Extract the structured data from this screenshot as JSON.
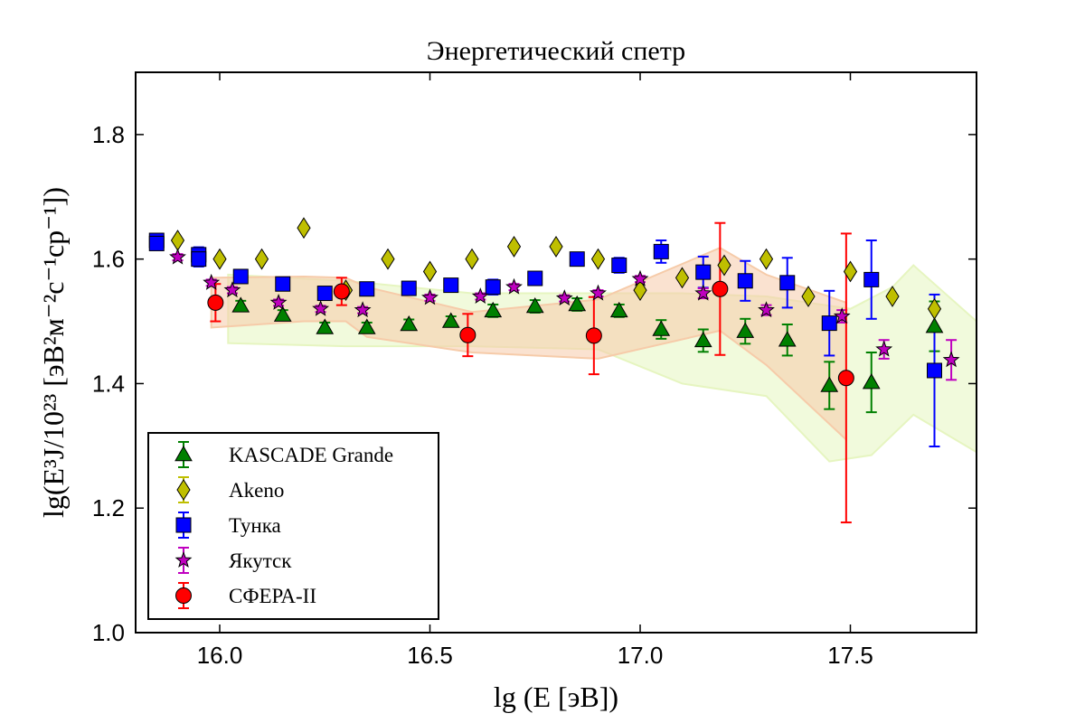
{
  "chart_data": {
    "type": "scatter",
    "title": "Энергетический спетр",
    "xlabel": "lg (E [эВ])",
    "ylabel": "lg(E³J/10²³ [эВ²м⁻²с⁻¹ср⁻¹])",
    "xlim": [
      15.8,
      17.8
    ],
    "ylim": [
      1.0,
      1.9
    ],
    "xticks": [
      "16.0",
      "16.5",
      "17.0",
      "17.5"
    ],
    "yticks": [
      "1.0",
      "1.2",
      "1.4",
      "1.6",
      "1.8"
    ],
    "grid": false,
    "legend_position": "lower-left",
    "series": [
      {
        "name": "KASCADE Grande",
        "marker": "triangle",
        "color": "#008000",
        "errcolor": "#008000",
        "points": [
          {
            "x": 16.05,
            "y": 1.525,
            "err": 0.008
          },
          {
            "x": 16.15,
            "y": 1.51,
            "err": 0.008
          },
          {
            "x": 16.25,
            "y": 1.49,
            "err": 0.008
          },
          {
            "x": 16.35,
            "y": 1.49,
            "err": 0.008
          },
          {
            "x": 16.45,
            "y": 1.495,
            "err": 0.008
          },
          {
            "x": 16.55,
            "y": 1.5,
            "err": 0.008
          },
          {
            "x": 16.65,
            "y": 1.517,
            "err": 0.01
          },
          {
            "x": 16.75,
            "y": 1.524,
            "err": 0.01
          },
          {
            "x": 16.85,
            "y": 1.527,
            "err": 0.01
          },
          {
            "x": 16.95,
            "y": 1.517,
            "err": 0.01
          },
          {
            "x": 17.05,
            "y": 1.487,
            "err": 0.015
          },
          {
            "x": 17.15,
            "y": 1.469,
            "err": 0.018
          },
          {
            "x": 17.25,
            "y": 1.484,
            "err": 0.02
          },
          {
            "x": 17.35,
            "y": 1.47,
            "err": 0.025
          },
          {
            "x": 17.45,
            "y": 1.397,
            "err": 0.038
          },
          {
            "x": 17.55,
            "y": 1.402,
            "err": 0.048
          },
          {
            "x": 17.7,
            "y": 1.492,
            "err": 0.04
          }
        ]
      },
      {
        "name": "Akeno",
        "marker": "diamond",
        "color": "#bfbf00",
        "errcolor": "#bfbf00",
        "points": [
          {
            "x": 15.9,
            "y": 1.63,
            "err": 0
          },
          {
            "x": 16.0,
            "y": 1.6,
            "err": 0
          },
          {
            "x": 16.1,
            "y": 1.6,
            "err": 0
          },
          {
            "x": 16.2,
            "y": 1.65,
            "err": 0
          },
          {
            "x": 16.3,
            "y": 1.55,
            "err": 0
          },
          {
            "x": 16.4,
            "y": 1.6,
            "err": 0
          },
          {
            "x": 16.5,
            "y": 1.58,
            "err": 0
          },
          {
            "x": 16.6,
            "y": 1.6,
            "err": 0
          },
          {
            "x": 16.7,
            "y": 1.62,
            "err": 0
          },
          {
            "x": 16.8,
            "y": 1.62,
            "err": 0
          },
          {
            "x": 16.9,
            "y": 1.6,
            "err": 0
          },
          {
            "x": 17.0,
            "y": 1.55,
            "err": 0
          },
          {
            "x": 17.1,
            "y": 1.57,
            "err": 0
          },
          {
            "x": 17.2,
            "y": 1.59,
            "err": 0
          },
          {
            "x": 17.3,
            "y": 1.6,
            "err": 0
          },
          {
            "x": 17.4,
            "y": 1.54,
            "err": 0
          },
          {
            "x": 17.5,
            "y": 1.58,
            "err": 0
          },
          {
            "x": 17.6,
            "y": 1.54,
            "err": 0
          },
          {
            "x": 17.7,
            "y": 1.52,
            "err": 0
          }
        ]
      },
      {
        "name": "Тунка",
        "marker": "square",
        "color": "#0000ff",
        "errcolor": "#0000ff",
        "points": [
          {
            "x": 15.85,
            "y": 1.63,
            "err": 0.008
          },
          {
            "x": 15.85,
            "y": 1.625,
            "err": 0.008
          },
          {
            "x": 15.95,
            "y": 1.607,
            "err": 0.012
          },
          {
            "x": 15.95,
            "y": 1.6,
            "err": 0.012
          },
          {
            "x": 16.05,
            "y": 1.572,
            "err": 0.008
          },
          {
            "x": 16.15,
            "y": 1.56,
            "err": 0.008
          },
          {
            "x": 16.25,
            "y": 1.545,
            "err": 0.008
          },
          {
            "x": 16.35,
            "y": 1.552,
            "err": 0.008
          },
          {
            "x": 16.45,
            "y": 1.553,
            "err": 0.008
          },
          {
            "x": 16.55,
            "y": 1.558,
            "err": 0.008
          },
          {
            "x": 16.65,
            "y": 1.555,
            "err": 0.012
          },
          {
            "x": 16.75,
            "y": 1.569,
            "err": 0.008
          },
          {
            "x": 16.85,
            "y": 1.6,
            "err": 0.008
          },
          {
            "x": 16.95,
            "y": 1.59,
            "err": 0.012
          },
          {
            "x": 17.05,
            "y": 1.612,
            "err": 0.018
          },
          {
            "x": 17.15,
            "y": 1.579,
            "err": 0.025
          },
          {
            "x": 17.25,
            "y": 1.565,
            "err": 0.032
          },
          {
            "x": 17.35,
            "y": 1.562,
            "err": 0.04
          },
          {
            "x": 17.45,
            "y": 1.497,
            "err": 0.052
          },
          {
            "x": 17.55,
            "y": 1.567,
            "err": 0.063
          },
          {
            "x": 17.7,
            "y": 1.421,
            "err": 0.122
          }
        ]
      },
      {
        "name": "Якутск",
        "marker": "star",
        "color": "#bf00bf",
        "errcolor": "#bf00bf",
        "points": [
          {
            "x": 15.9,
            "y": 1.603,
            "err": 0.005
          },
          {
            "x": 15.98,
            "y": 1.562,
            "err": 0.005
          },
          {
            "x": 16.03,
            "y": 1.55,
            "err": 0.005
          },
          {
            "x": 16.14,
            "y": 1.53,
            "err": 0.005
          },
          {
            "x": 16.24,
            "y": 1.52,
            "err": 0.005
          },
          {
            "x": 16.34,
            "y": 1.518,
            "err": 0.005
          },
          {
            "x": 16.5,
            "y": 1.538,
            "err": 0.005
          },
          {
            "x": 16.62,
            "y": 1.54,
            "err": 0.005
          },
          {
            "x": 16.7,
            "y": 1.555,
            "err": 0.005
          },
          {
            "x": 16.82,
            "y": 1.537,
            "err": 0.005
          },
          {
            "x": 16.9,
            "y": 1.545,
            "err": 0.005
          },
          {
            "x": 17.0,
            "y": 1.568,
            "err": 0.005
          },
          {
            "x": 17.15,
            "y": 1.545,
            "err": 0.008
          },
          {
            "x": 17.3,
            "y": 1.518,
            "err": 0.008
          },
          {
            "x": 17.48,
            "y": 1.508,
            "err": 0.01
          },
          {
            "x": 17.58,
            "y": 1.455,
            "err": 0.015
          },
          {
            "x": 17.74,
            "y": 1.438,
            "err": 0.032
          }
        ]
      },
      {
        "name": "СФЕРА-II",
        "marker": "circle",
        "color": "#ff0000",
        "errcolor": "#ff0000",
        "points": [
          {
            "x": 15.99,
            "y": 1.53,
            "err": 0.03
          },
          {
            "x": 16.29,
            "y": 1.548,
            "err": 0.022
          },
          {
            "x": 16.59,
            "y": 1.478,
            "err": 0.034
          },
          {
            "x": 16.89,
            "y": 1.477,
            "err": 0.062
          },
          {
            "x": 17.19,
            "y": 1.552,
            "err": 0.106
          },
          {
            "x": 17.49,
            "y": 1.409,
            "err": 0.232
          }
        ]
      }
    ],
    "bands": [
      {
        "color": "#e6f5c0",
        "upper": [
          [
            16.02,
            1.575
          ],
          [
            16.3,
            1.565
          ],
          [
            16.6,
            1.545
          ],
          [
            16.9,
            1.545
          ],
          [
            17.1,
            1.545
          ],
          [
            17.3,
            1.54
          ],
          [
            17.5,
            1.52
          ],
          [
            17.6,
            1.555
          ],
          [
            17.65,
            1.59
          ],
          [
            17.8,
            1.5
          ]
        ],
        "lower": [
          [
            16.02,
            1.465
          ],
          [
            16.3,
            1.46
          ],
          [
            16.6,
            1.46
          ],
          [
            16.9,
            1.455
          ],
          [
            17.1,
            1.4
          ],
          [
            17.3,
            1.38
          ],
          [
            17.45,
            1.275
          ],
          [
            17.55,
            1.285
          ],
          [
            17.65,
            1.35
          ],
          [
            17.8,
            1.29
          ]
        ]
      },
      {
        "color": "#f6cba9",
        "upper": [
          [
            15.98,
            1.57
          ],
          [
            16.2,
            1.572
          ],
          [
            16.3,
            1.57
          ],
          [
            16.35,
            1.555
          ],
          [
            16.6,
            1.515
          ],
          [
            16.9,
            1.535
          ],
          [
            17.19,
            1.618
          ],
          [
            17.3,
            1.575
          ],
          [
            17.49,
            1.53
          ]
        ],
        "lower": [
          [
            15.98,
            1.49
          ],
          [
            16.2,
            1.5
          ],
          [
            16.3,
            1.5
          ],
          [
            16.35,
            1.475
          ],
          [
            16.6,
            1.45
          ],
          [
            16.9,
            1.44
          ],
          [
            17.19,
            1.485
          ],
          [
            17.3,
            1.43
          ],
          [
            17.49,
            1.31
          ]
        ]
      }
    ]
  }
}
